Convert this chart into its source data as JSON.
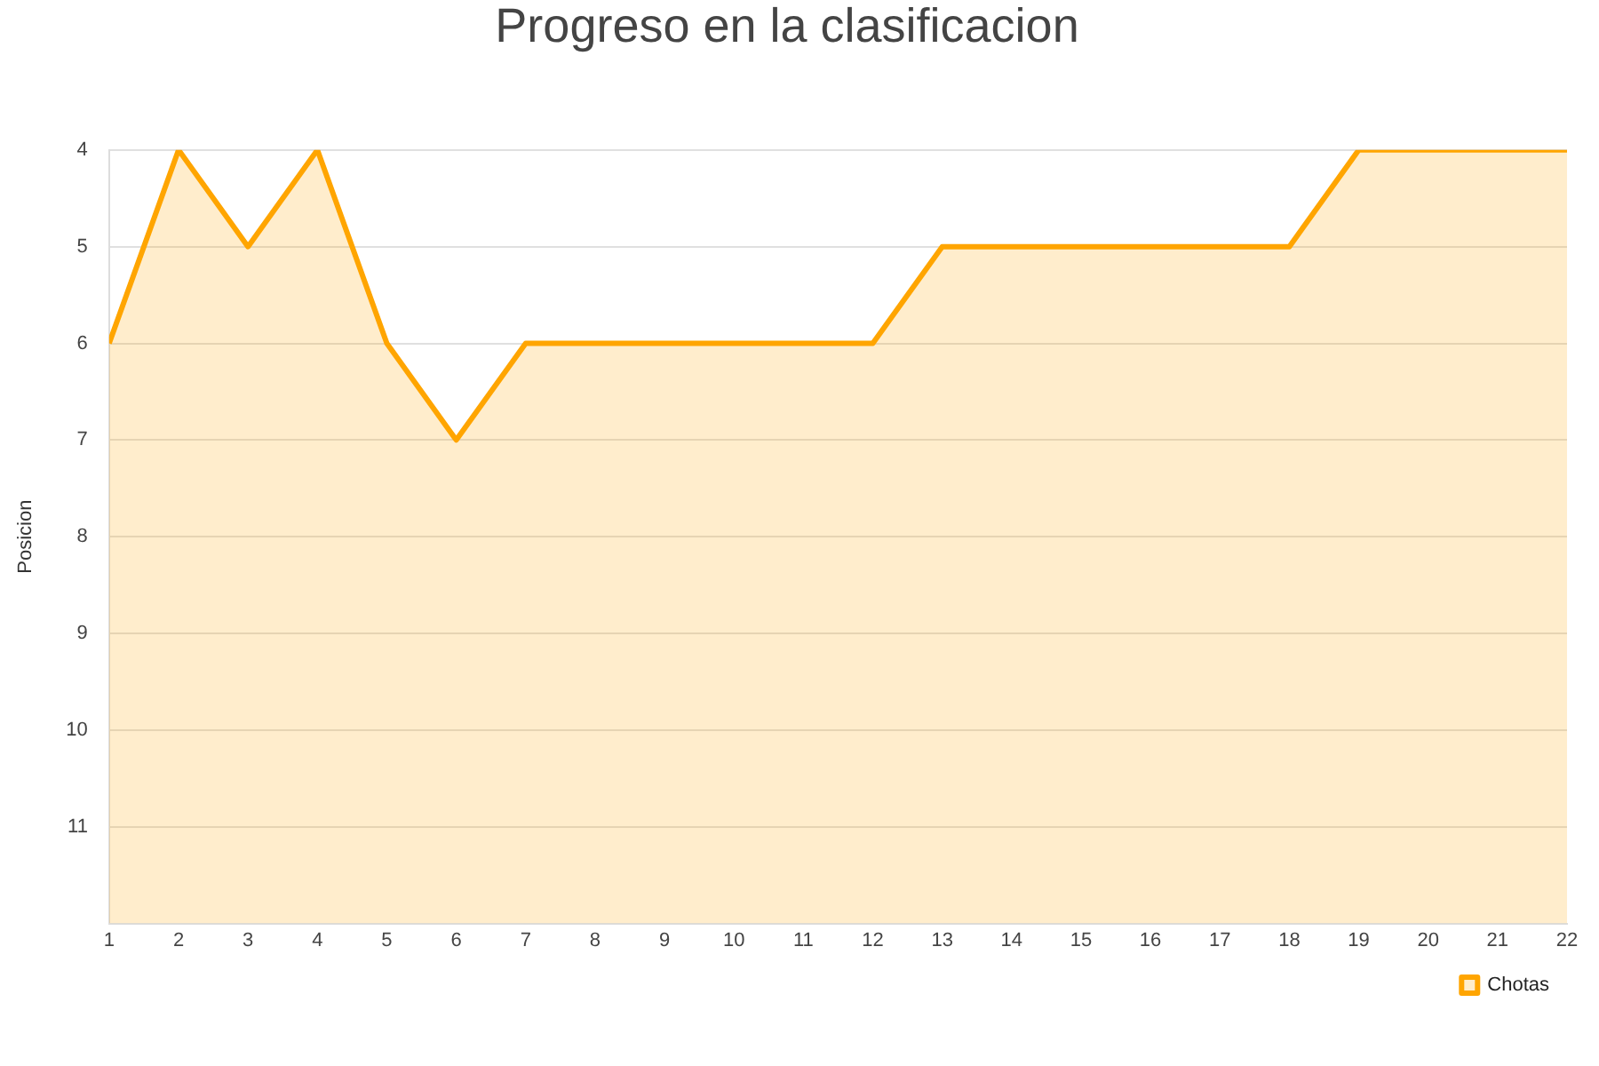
{
  "chart_data": {
    "type": "line",
    "title": "Progreso en la clasificacion",
    "ylabel": "Posicion",
    "x": [
      1,
      2,
      3,
      4,
      5,
      6,
      7,
      8,
      9,
      10,
      11,
      12,
      13,
      14,
      15,
      16,
      17,
      18,
      19,
      20,
      21,
      22
    ],
    "series": [
      {
        "name": "Chotas",
        "color": "#ffa500",
        "values": [
          6,
          4,
          5,
          4,
          6,
          7,
          6,
          6,
          6,
          6,
          6,
          6,
          5,
          5,
          5,
          5,
          5,
          5,
          4,
          4,
          4,
          4
        ]
      }
    ],
    "xlim": [
      1,
      22
    ],
    "xticks": [
      1,
      2,
      3,
      4,
      5,
      6,
      7,
      8,
      9,
      10,
      11,
      12,
      13,
      14,
      15,
      16,
      17,
      18,
      19,
      20,
      21,
      22
    ],
    "ylim": [
      12,
      4
    ],
    "yticks": [
      4,
      5,
      6,
      7,
      8,
      9,
      10,
      11
    ],
    "grid": "y",
    "legend": "bottom right",
    "marker": "none",
    "line_style": "solid"
  }
}
